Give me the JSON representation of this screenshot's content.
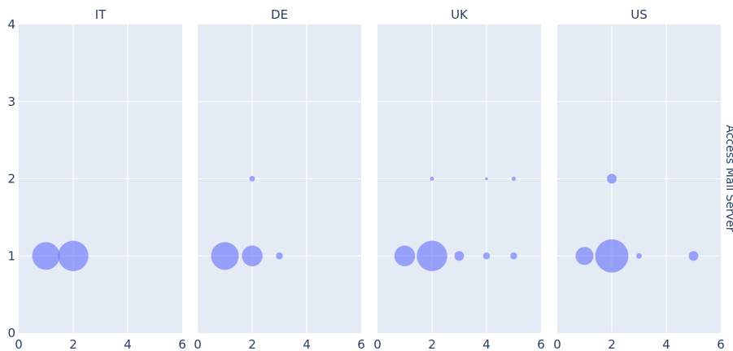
{
  "chart_data": {
    "type": "scatter",
    "title": "",
    "right_label": "Access Mail Server",
    "xlabel": "",
    "ylabel": "",
    "xlim": [
      0,
      6
    ],
    "ylim": [
      0,
      4
    ],
    "x_ticks": [
      "0",
      "2",
      "4",
      "6"
    ],
    "y_ticks": [
      "0",
      "1",
      "2",
      "3",
      "4"
    ],
    "grid": true,
    "marker_color": "#636efa",
    "marker_opacity": 0.6,
    "panels": [
      {
        "name": "IT",
        "points": [
          {
            "x": 1,
            "y": 1,
            "size": 20
          },
          {
            "x": 2,
            "y": 1,
            "size": 22
          }
        ]
      },
      {
        "name": "DE",
        "points": [
          {
            "x": 1,
            "y": 1,
            "size": 20
          },
          {
            "x": 2,
            "y": 1,
            "size": 15
          },
          {
            "x": 3,
            "y": 1,
            "size": 5
          },
          {
            "x": 2,
            "y": 2,
            "size": 4
          }
        ]
      },
      {
        "name": "UK",
        "points": [
          {
            "x": 1,
            "y": 1,
            "size": 15
          },
          {
            "x": 2,
            "y": 1,
            "size": 22
          },
          {
            "x": 3,
            "y": 1,
            "size": 7
          },
          {
            "x": 4,
            "y": 1,
            "size": 5
          },
          {
            "x": 5,
            "y": 1,
            "size": 5
          },
          {
            "x": 2,
            "y": 2,
            "size": 3
          },
          {
            "x": 4,
            "y": 2,
            "size": 2
          },
          {
            "x": 5,
            "y": 2,
            "size": 3
          }
        ]
      },
      {
        "name": "US",
        "points": [
          {
            "x": 1,
            "y": 1,
            "size": 13
          },
          {
            "x": 2,
            "y": 1,
            "size": 24
          },
          {
            "x": 3,
            "y": 1,
            "size": 4
          },
          {
            "x": 5,
            "y": 1,
            "size": 7
          },
          {
            "x": 2,
            "y": 2,
            "size": 7
          }
        ]
      }
    ]
  }
}
